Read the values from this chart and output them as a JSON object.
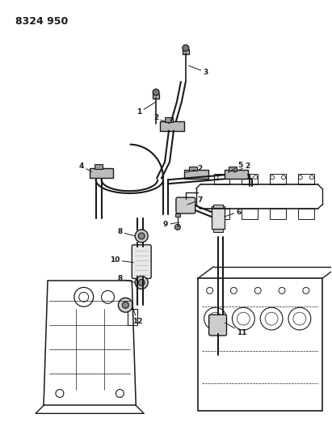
{
  "title": "8324 950",
  "bg": "#ffffff",
  "lc": "#1a1a1a",
  "tc": "#1a1a1a",
  "figsize": [
    4.11,
    5.33
  ],
  "dpi": 100
}
